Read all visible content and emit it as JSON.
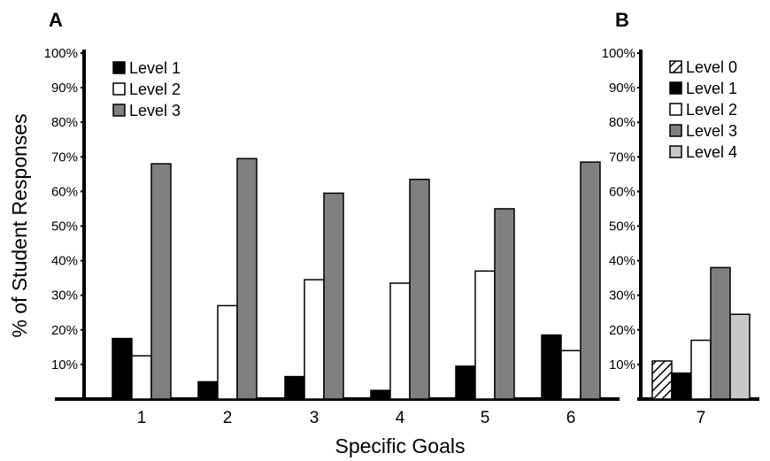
{
  "colors": {
    "level0": "hatched",
    "level1": "#000000",
    "level2": "#ffffff",
    "level3": "#808080",
    "level4": "#c8c8c8"
  },
  "chart_data": [
    {
      "panel": "A",
      "type": "bar",
      "categories": [
        "1",
        "2",
        "3",
        "4",
        "5",
        "6"
      ],
      "series": [
        {
          "name": "Level 1",
          "values": [
            17.5,
            5,
            6.5,
            2.5,
            9.5,
            18.5
          ]
        },
        {
          "name": "Level 2",
          "values": [
            12.5,
            27,
            34.5,
            33.5,
            37,
            14
          ]
        },
        {
          "name": "Level 3",
          "values": [
            68,
            69.5,
            59.5,
            63.5,
            55,
            68.5
          ]
        }
      ],
      "xlabel": "Specific Goals",
      "ylabel": "% of Student Responses",
      "ylim": [
        0,
        100
      ],
      "yticks": [
        "10%",
        "20%",
        "30%",
        "40%",
        "50%",
        "60%",
        "70%",
        "80%",
        "90%",
        "100%"
      ],
      "legend": "top-left",
      "grid": false
    },
    {
      "panel": "B",
      "type": "bar",
      "categories": [
        "7"
      ],
      "series": [
        {
          "name": "Level 0",
          "values": [
            11
          ]
        },
        {
          "name": "Level 1",
          "values": [
            7.5
          ]
        },
        {
          "name": "Level 2",
          "values": [
            17
          ]
        },
        {
          "name": "Level 3",
          "values": [
            38
          ]
        },
        {
          "name": "Level 4",
          "values": [
            24.5
          ]
        }
      ],
      "ylim": [
        0,
        100
      ],
      "yticks": [
        "10%",
        "20%",
        "30%",
        "40%",
        "50%",
        "60%",
        "70%",
        "80%",
        "90%",
        "100%"
      ],
      "legend": "top-left",
      "grid": false
    }
  ]
}
